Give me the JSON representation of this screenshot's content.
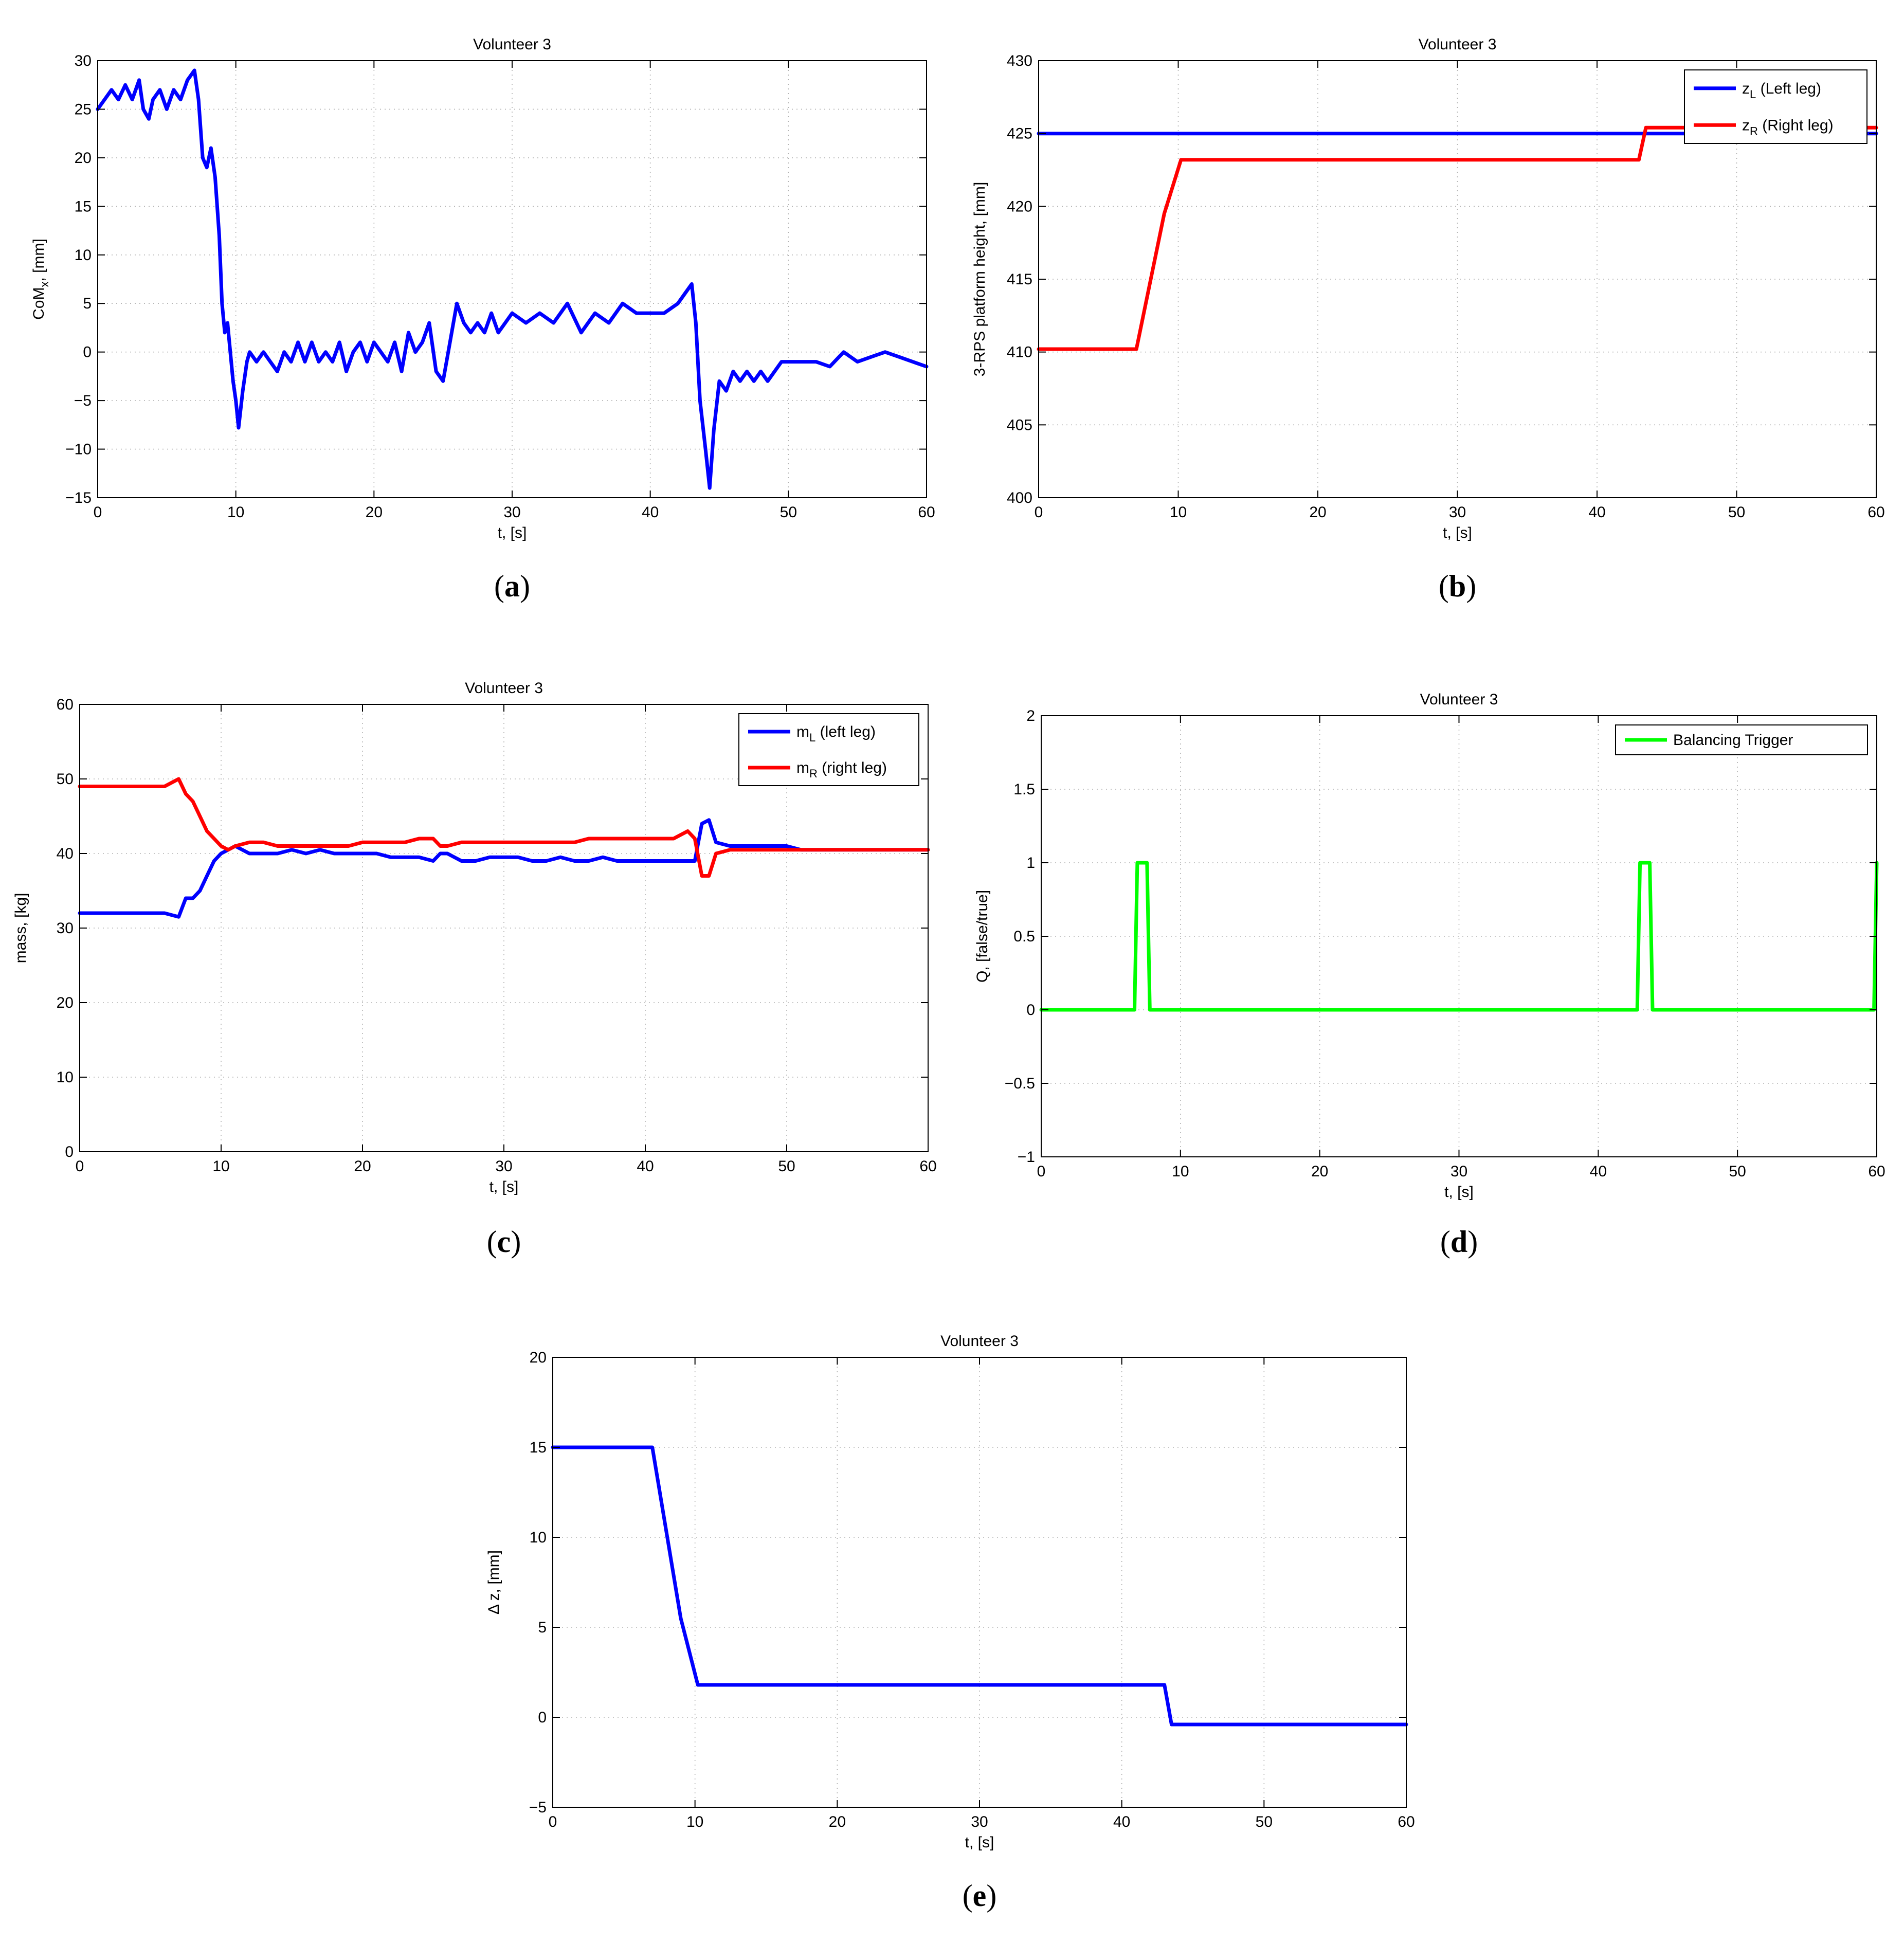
{
  "colors": {
    "blue": "#0000ff",
    "red": "#ff0000",
    "green": "#00ff00"
  },
  "chart_data": [
    {
      "type": "line",
      "caption_letter": "a",
      "title": "Volunteer 3",
      "xlabel": "t, [s]",
      "ylabel_main": "CoM",
      "ylabel_sub": "x",
      "ylabel_tail": ", [mm]",
      "xlim": [
        0,
        60
      ],
      "ylim": [
        -15,
        30
      ],
      "xticks": [
        0,
        10,
        20,
        30,
        40,
        50,
        60
      ],
      "yticks": [
        -15,
        -10,
        -5,
        0,
        5,
        10,
        15,
        20,
        25,
        30
      ],
      "grid": true,
      "legend": null,
      "series": [
        {
          "name": "CoM_x",
          "color": "blue",
          "x": [
            0,
            0.5,
            1,
            1.5,
            2,
            2.5,
            3,
            3.3,
            3.7,
            4,
            4.5,
            5,
            5.5,
            6,
            6.5,
            7,
            7.3,
            7.6,
            7.9,
            8.2,
            8.5,
            8.8,
            9,
            9.2,
            9.4,
            9.6,
            9.8,
            10,
            10.2,
            10.5,
            10.8,
            11,
            11.5,
            12,
            12.5,
            13,
            13.5,
            14,
            14.5,
            15,
            15.5,
            16,
            16.5,
            17,
            17.5,
            18,
            18.5,
            19,
            19.5,
            20,
            20.5,
            21,
            21.5,
            22,
            22.5,
            23,
            23.5,
            24,
            24.5,
            25,
            25.5,
            26,
            26.5,
            27,
            27.5,
            28,
            28.5,
            29,
            29.5,
            30,
            31,
            32,
            33,
            34,
            35,
            36,
            37,
            38,
            39,
            40,
            41,
            42,
            42.5,
            43,
            43.3,
            43.6,
            44,
            44.3,
            44.6,
            45,
            45.5,
            46,
            46.5,
            47,
            47.5,
            48,
            48.5,
            49,
            49.5,
            50,
            51,
            52,
            53,
            54,
            55,
            56,
            57,
            58,
            59,
            60
          ],
          "y": [
            25,
            26,
            27,
            26,
            27.5,
            26,
            28,
            25,
            24,
            26,
            27,
            25,
            27,
            26,
            28,
            29,
            26,
            20,
            19,
            21,
            18,
            12,
            5,
            2,
            3,
            0,
            -3,
            -5,
            -7.8,
            -4,
            -1,
            0,
            -1,
            0,
            -1,
            -2,
            0,
            -1,
            1,
            -1,
            1,
            -1,
            0,
            -1,
            1,
            -2,
            0,
            1,
            -1,
            1,
            0,
            -1,
            1,
            -2,
            2,
            0,
            1,
            3,
            -2,
            -3,
            1,
            5,
            3,
            2,
            3,
            2,
            4,
            2,
            3,
            4,
            3,
            4,
            3,
            5,
            2,
            4,
            3,
            5,
            4,
            4,
            4,
            5,
            6,
            7,
            3,
            -5,
            -10,
            -14,
            -8,
            -3,
            -4,
            -2,
            -3,
            -2,
            -3,
            -2,
            -3,
            -2,
            -1,
            -1,
            -1,
            -1,
            -1.5,
            0,
            -1,
            -0.5,
            0,
            -0.5,
            -1,
            -1.5
          ]
        }
      ]
    },
    {
      "type": "line",
      "caption_letter": "b",
      "title": "Volunteer 3",
      "xlabel": "t, [s]",
      "ylabel": "3-RPS platform height, [mm]",
      "xlim": [
        0,
        60
      ],
      "ylim": [
        400,
        430
      ],
      "xticks": [
        0,
        10,
        20,
        30,
        40,
        50,
        60
      ],
      "yticks": [
        400,
        405,
        410,
        415,
        420,
        425,
        430
      ],
      "grid": true,
      "legend": "top-right",
      "series": [
        {
          "name": "z",
          "sub": "L",
          "label_tail": " (Left leg)",
          "color": "blue",
          "x": [
            0,
            60
          ],
          "y": [
            425,
            425
          ]
        },
        {
          "name": "z",
          "sub": "R",
          "label_tail": " (Right leg)",
          "color": "red",
          "x": [
            0,
            7,
            9,
            10.2,
            43,
            43.5,
            60
          ],
          "y": [
            410.2,
            410.2,
            419.5,
            423.2,
            423.2,
            425.4,
            425.4
          ]
        }
      ]
    },
    {
      "type": "line",
      "caption_letter": "c",
      "title": "Volunteer 3",
      "xlabel": "t, [s]",
      "ylabel": "mass, [kg]",
      "xlim": [
        0,
        60
      ],
      "ylim": [
        0,
        60
      ],
      "xticks": [
        0,
        10,
        20,
        30,
        40,
        50,
        60
      ],
      "yticks": [
        0,
        10,
        20,
        30,
        40,
        50,
        60
      ],
      "grid": true,
      "legend": "top-right",
      "series": [
        {
          "name": "m",
          "sub": "L",
          "label_tail": " (left leg)",
          "color": "blue",
          "x": [
            0,
            1,
            2,
            3,
            4,
            5,
            6,
            7,
            7.5,
            8,
            8.5,
            9,
            9.5,
            10,
            10.5,
            11,
            12,
            13,
            14,
            15,
            16,
            17,
            18,
            19,
            20,
            21,
            22,
            23,
            24,
            25,
            25.5,
            26,
            27,
            28,
            29,
            30,
            31,
            32,
            33,
            34,
            35,
            36,
            37,
            38,
            39,
            40,
            41,
            42,
            43,
            43.5,
            44,
            44.5,
            45,
            46,
            47,
            48,
            49,
            50,
            51,
            52,
            53,
            54,
            55,
            56,
            57,
            58,
            59,
            60
          ],
          "y": [
            32,
            32,
            32,
            32,
            32,
            32,
            32,
            31.5,
            34,
            34,
            35,
            37,
            39,
            40,
            40.5,
            41,
            40,
            40,
            40,
            40.5,
            40,
            40.5,
            40,
            40,
            40,
            40,
            39.5,
            39.5,
            39.5,
            39,
            40,
            40,
            39,
            39,
            39.5,
            39.5,
            39.5,
            39,
            39,
            39.5,
            39,
            39,
            39.5,
            39,
            39,
            39,
            39,
            39,
            39,
            39,
            44,
            44.5,
            41.5,
            41,
            41,
            41,
            41,
            41,
            40.5,
            40.5,
            40.5,
            40.5,
            40.5,
            40.5,
            40.5,
            40.5,
            40.5,
            40.5
          ]
        },
        {
          "name": "m",
          "sub": "R",
          "label_tail": " (right leg)",
          "color": "red",
          "x": [
            0,
            1,
            2,
            3,
            4,
            5,
            6,
            7,
            7.5,
            8,
            8.5,
            9,
            9.5,
            10,
            10.5,
            11,
            12,
            13,
            14,
            15,
            16,
            17,
            18,
            19,
            20,
            21,
            22,
            23,
            24,
            25,
            25.5,
            26,
            27,
            28,
            29,
            30,
            31,
            32,
            33,
            34,
            35,
            36,
            37,
            38,
            39,
            40,
            41,
            42,
            43,
            43.5,
            44,
            44.5,
            45,
            46,
            47,
            48,
            49,
            50,
            51,
            52,
            53,
            54,
            55,
            56,
            57,
            58,
            59,
            60
          ],
          "y": [
            49,
            49,
            49,
            49,
            49,
            49,
            49,
            50,
            48,
            47,
            45,
            43,
            42,
            41,
            40.5,
            41,
            41.5,
            41.5,
            41,
            41,
            41,
            41,
            41,
            41,
            41.5,
            41.5,
            41.5,
            41.5,
            42,
            42,
            41,
            41,
            41.5,
            41.5,
            41.5,
            41.5,
            41.5,
            41.5,
            41.5,
            41.5,
            41.5,
            42,
            42,
            42,
            42,
            42,
            42,
            42,
            43,
            42,
            37,
            37,
            40,
            40.5,
            40.5,
            40.5,
            40.5,
            40.5,
            40.5,
            40.5,
            40.5,
            40.5,
            40.5,
            40.5,
            40.5,
            40.5,
            40.5,
            40.5
          ]
        }
      ]
    },
    {
      "type": "line",
      "caption_letter": "d",
      "title": "Volunteer 3",
      "xlabel": "t, [s]",
      "ylabel": "Q, [false/true]",
      "xlim": [
        0,
        60
      ],
      "ylim": [
        -1,
        2
      ],
      "xticks": [
        0,
        10,
        20,
        30,
        40,
        50,
        60
      ],
      "yticks": [
        -1,
        -0.5,
        0,
        0.5,
        1,
        1.5,
        2
      ],
      "grid": true,
      "legend": "top-right",
      "series": [
        {
          "name": "Balancing Trigger",
          "color": "green",
          "x": [
            0,
            6.7,
            6.9,
            7.6,
            7.8,
            42.8,
            43,
            43.7,
            43.9,
            59.8,
            60
          ],
          "y": [
            0,
            0,
            1,
            1,
            0,
            0,
            1,
            1,
            0,
            0,
            1
          ]
        }
      ]
    },
    {
      "type": "line",
      "caption_letter": "e",
      "title": "Volunteer 3",
      "xlabel": "t, [s]",
      "ylabel": "Δ z, [mm]",
      "xlim": [
        0,
        60
      ],
      "ylim": [
        -5,
        20
      ],
      "xticks": [
        0,
        10,
        20,
        30,
        40,
        50,
        60
      ],
      "yticks": [
        -5,
        0,
        5,
        10,
        15,
        20
      ],
      "grid": true,
      "legend": null,
      "series": [
        {
          "name": "delta_z",
          "color": "blue",
          "x": [
            0,
            7,
            9,
            10.2,
            43,
            43.5,
            60
          ],
          "y": [
            15,
            15,
            5.5,
            1.8,
            1.8,
            -0.4,
            -0.4
          ]
        }
      ]
    }
  ]
}
